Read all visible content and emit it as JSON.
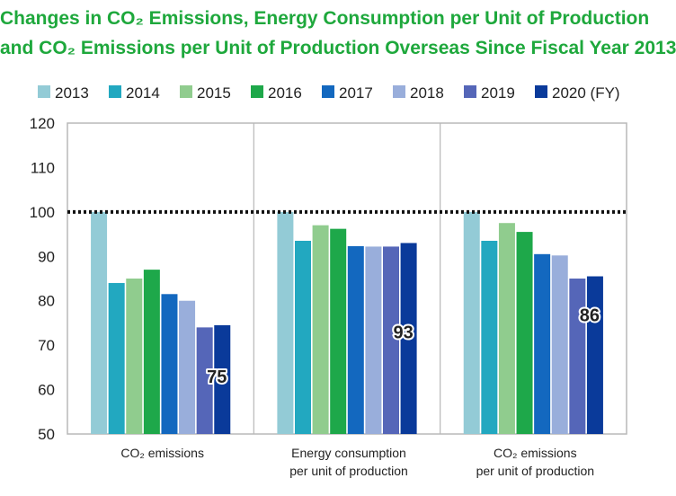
{
  "title_line1": "Changes in CO₂ Emissions, Energy Consumption per Unit of Production",
  "title_line2": "and CO₂ Emissions per Unit of Production Overseas Since Fiscal Year 2013",
  "chart_data": {
    "type": "bar",
    "title": "Changes in CO₂ Emissions, Energy Consumption per Unit of Production and CO₂ Emissions per Unit of Production Overseas Since Fiscal Year 2013",
    "categories": [
      [
        "CO₂ emissions"
      ],
      [
        "Energy consumption",
        "per unit of production"
      ],
      [
        "CO₂ emissions",
        "per unit of production"
      ]
    ],
    "series": [
      {
        "name": "2013",
        "color": "#93cbd6",
        "values": [
          100,
          100,
          100
        ]
      },
      {
        "name": "2014",
        "color": "#22a8c0",
        "values": [
          84,
          93.5,
          93.5
        ]
      },
      {
        "name": "2015",
        "color": "#90cc8e",
        "values": [
          85,
          97,
          97.5
        ]
      },
      {
        "name": "2016",
        "color": "#1ea84a",
        "values": [
          87,
          96.2,
          95.5
        ]
      },
      {
        "name": "2017",
        "color": "#1368bf",
        "values": [
          81.5,
          92.3,
          90.5
        ]
      },
      {
        "name": "2018",
        "color": "#99aedb",
        "values": [
          80,
          92.2,
          90.2
        ]
      },
      {
        "name": "2019",
        "color": "#5566b8",
        "values": [
          74,
          92.2,
          85
        ]
      },
      {
        "name": "2020 (FY)",
        "color": "#0a3a9a",
        "values": [
          74.5,
          93,
          85.5
        ]
      }
    ],
    "data_labels": [
      "75",
      "93",
      "86"
    ],
    "y_ticks": [
      "50",
      "60",
      "70",
      "80",
      "90",
      "100",
      "110",
      "120"
    ],
    "ylim": [
      50,
      120
    ],
    "reference_line": 100,
    "grid": false,
    "legend_position": "top"
  }
}
